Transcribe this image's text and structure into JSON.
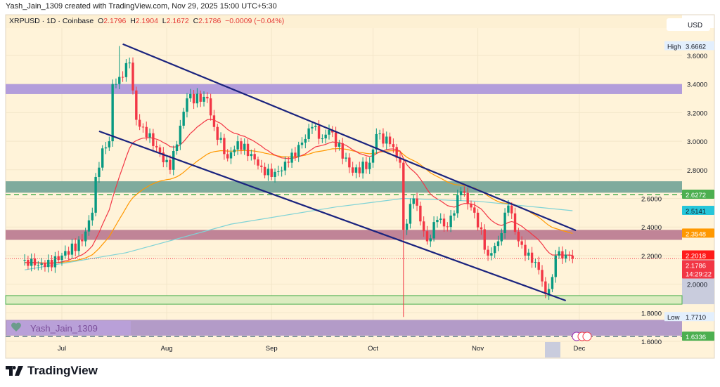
{
  "header": {
    "caption": "Yash_Jain_1309 created with TradingView.com, Nov 29, 2025 15:00 UTC+5:30"
  },
  "legend": {
    "symbol": "XRPUSD · 1D · Coinbase",
    "o_label": "O",
    "o": "2.1796",
    "h_label": "H",
    "h": "2.1904",
    "l_label": "L",
    "l": "2.1672",
    "c_label": "C",
    "c": "2.1786",
    "change": "−0.0009 (−0.04%)"
  },
  "currency": "USD",
  "watermark": "Yash_Jain_1309",
  "brand": "TradingView",
  "colors": {
    "bg": "#fff3d9",
    "up": "#089981",
    "down": "#f23645",
    "ema_fast": "#f23645",
    "ema_slow": "#ff9800",
    "ma_long": "#7fd3d6",
    "channel": "#1a237e"
  },
  "chart_data": {
    "type": "candlestick",
    "title": "XRPUSD · 1D · Coinbase",
    "ylim": [
      1.6,
      3.7
    ],
    "yticks": [
      "3.6000",
      "3.4000",
      "3.2000",
      "3.0000",
      "2.8000",
      "2.6000",
      "2.4000",
      "2.2000",
      "2.0000",
      "1.8000",
      "1.6000"
    ],
    "xticks": [
      {
        "label": "Jul",
        "date": "2025-07-01"
      },
      {
        "label": "Aug",
        "date": "2025-08-01"
      },
      {
        "label": "Sep",
        "date": "2025-09-01"
      },
      {
        "label": "Oct",
        "date": "2025-10-01"
      },
      {
        "label": "Nov",
        "date": "2025-11-01"
      },
      {
        "label": "Dec",
        "date": "2025-12-01"
      }
    ],
    "closes_keypoints": [
      {
        "d": "2025-06-20",
        "c": 2.17
      },
      {
        "d": "2025-06-26",
        "c": 2.12
      },
      {
        "d": "2025-07-01",
        "c": 2.2
      },
      {
        "d": "2025-07-07",
        "c": 2.3
      },
      {
        "d": "2025-07-10",
        "c": 2.5
      },
      {
        "d": "2025-07-11",
        "c": 2.75
      },
      {
        "d": "2025-07-13",
        "c": 2.95
      },
      {
        "d": "2025-07-15",
        "c": 3.0
      },
      {
        "d": "2025-07-16",
        "c": 3.4
      },
      {
        "d": "2025-07-18",
        "c": 3.45,
        "h": 3.6662
      },
      {
        "d": "2025-07-21",
        "c": 3.55
      },
      {
        "d": "2025-07-23",
        "c": 3.15
      },
      {
        "d": "2025-07-25",
        "c": 3.1
      },
      {
        "d": "2025-08-02",
        "c": 2.8
      },
      {
        "d": "2025-08-07",
        "c": 3.3
      },
      {
        "d": "2025-08-13",
        "c": 3.3
      },
      {
        "d": "2025-08-15",
        "c": 3.1
      },
      {
        "d": "2025-08-19",
        "c": 2.88
      },
      {
        "d": "2025-08-22",
        "c": 3.0
      },
      {
        "d": "2025-08-29",
        "c": 2.82
      },
      {
        "d": "2025-09-01",
        "c": 2.75
      },
      {
        "d": "2025-09-06",
        "c": 2.85
      },
      {
        "d": "2025-09-13",
        "c": 3.1
      },
      {
        "d": "2025-09-16",
        "c": 3.02
      },
      {
        "d": "2025-09-18",
        "c": 3.08
      },
      {
        "d": "2025-09-25",
        "c": 2.78
      },
      {
        "d": "2025-09-30",
        "c": 2.85
      },
      {
        "d": "2025-10-02",
        "c": 3.05
      },
      {
        "d": "2025-10-06",
        "c": 2.98
      },
      {
        "d": "2025-10-09",
        "c": 2.85
      },
      {
        "d": "2025-10-10",
        "c": 2.38,
        "l": 1.771
      },
      {
        "d": "2025-10-13",
        "c": 2.6
      },
      {
        "d": "2025-10-17",
        "c": 2.3
      },
      {
        "d": "2025-10-20",
        "c": 2.45
      },
      {
        "d": "2025-10-23",
        "c": 2.4
      },
      {
        "d": "2025-10-27",
        "c": 2.65
      },
      {
        "d": "2025-10-31",
        "c": 2.5
      },
      {
        "d": "2025-11-04",
        "c": 2.2
      },
      {
        "d": "2025-11-07",
        "c": 2.3
      },
      {
        "d": "2025-11-10",
        "c": 2.55
      },
      {
        "d": "2025-11-13",
        "c": 2.3
      },
      {
        "d": "2025-11-17",
        "c": 2.15
      },
      {
        "d": "2025-11-19",
        "c": 2.1
      },
      {
        "d": "2025-11-21",
        "c": 1.93
      },
      {
        "d": "2025-11-23",
        "c": 2.05
      },
      {
        "d": "2025-11-24",
        "c": 2.2
      },
      {
        "d": "2025-11-28",
        "c": 2.2
      },
      {
        "d": "2025-11-29",
        "c": 2.1786
      }
    ],
    "long_ma_keypoints": [
      {
        "d": "2025-06-20",
        "c": 2.1
      },
      {
        "d": "2025-07-20",
        "c": 2.22
      },
      {
        "d": "2025-08-20",
        "c": 2.42
      },
      {
        "d": "2025-09-20",
        "c": 2.54
      },
      {
        "d": "2025-10-10",
        "c": 2.6
      },
      {
        "d": "2025-11-01",
        "c": 2.58
      },
      {
        "d": "2025-11-29",
        "c": 2.5141
      }
    ],
    "channel": {
      "upper": [
        {
          "d": "2025-07-19",
          "p": 3.68
        },
        {
          "d": "2025-11-30",
          "p": 2.376
        }
      ],
      "lower": [
        {
          "d": "2025-07-12",
          "p": 3.07
        },
        {
          "d": "2025-11-27",
          "p": 1.885
        }
      ]
    },
    "zones": [
      {
        "from": 3.33,
        "to": 3.4,
        "color": "#b39ddb"
      },
      {
        "from": 2.64,
        "to": 2.72,
        "color": "#7fab9d"
      },
      {
        "from": 2.31,
        "to": 2.38,
        "color": "#c08497"
      },
      {
        "from": 1.86,
        "to": 1.92,
        "color": "#dcecc0"
      },
      {
        "from": 1.64,
        "to": 1.75,
        "color": "#b39bc8"
      }
    ],
    "dashed_levels": [
      {
        "p": 2.6272,
        "color": "#4caf50"
      },
      {
        "p": 1.6336,
        "color": "#607d8b"
      }
    ],
    "price_labels": [
      {
        "text": "3.6662",
        "p": 3.6662,
        "bg": "#e3effd",
        "fg": "#131722",
        "prefix": "High"
      },
      {
        "text": "2.6272",
        "p": 2.6272,
        "bg": "#4caf50",
        "fg": "#fff"
      },
      {
        "text": "2.5141",
        "p": 2.5141,
        "bg": "#26c6da",
        "fg": "#131722"
      },
      {
        "text": "2.3548",
        "p": 2.3548,
        "bg": "#ff9800",
        "fg": "#fff"
      },
      {
        "text": "2.2018",
        "p": 2.2018,
        "bg": "#ff1a1a",
        "fg": "#fff"
      },
      {
        "text": "2.1786",
        "p": 2.1786,
        "bg": "#f23645",
        "fg": "#fff",
        "sub": "14:29:22"
      },
      {
        "text": "1.7710",
        "p": 1.771,
        "bg": "#e3effd",
        "fg": "#131722",
        "prefix": "Low"
      },
      {
        "text": "1.6336",
        "p": 1.6336,
        "bg": "#4caf50",
        "fg": "#fff"
      }
    ]
  }
}
